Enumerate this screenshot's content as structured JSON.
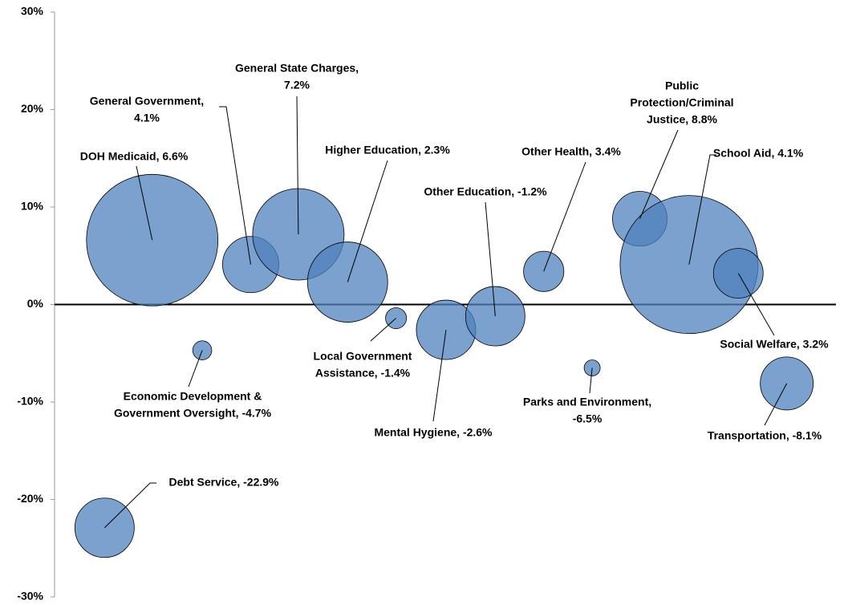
{
  "chart_data": {
    "type": "bubble",
    "x": [
      6.4,
      12.5,
      18.9,
      25.1,
      31.2,
      37.5,
      43.7,
      50.1,
      56.4,
      62.6,
      68.8,
      74.9,
      81.2,
      87.5,
      93.7
    ],
    "values": [
      -22.9,
      6.6,
      -4.7,
      4.1,
      7.2,
      2.3,
      -1.4,
      -2.6,
      -1.2,
      3.4,
      -6.5,
      8.8,
      4.1,
      3.2,
      -8.1
    ],
    "sizes": [
      13.7,
      67.2,
      1.4,
      12.3,
      32.5,
      25,
      1.7,
      13.7,
      13.7,
      6.3,
      1,
      11.6,
      74,
      9.6,
      10.9
    ],
    "value_labels": [
      [
        "Debt Service, -22.9%"
      ],
      [
        "DOH Medicaid, 6.6%"
      ],
      [
        "Economic Development &",
        "Government Oversight, -4.7%"
      ],
      [
        "General Government,",
        "4.1%"
      ],
      [
        "General State Charges,",
        "7.2%"
      ],
      [
        "Higher Education, 2.3%"
      ],
      [
        "Local Government",
        "Assistance, -1.4%"
      ],
      [
        "Mental Hygiene, -2.6%"
      ],
      [
        "Other Education, -1.2%"
      ],
      [
        "Other Health, 3.4%"
      ],
      [
        "Parks and Environment,",
        "-6.5%"
      ],
      [
        "Public",
        "Protection/Criminal",
        "Justice, 8.8%"
      ],
      [
        "School Aid, 4.1%"
      ],
      [
        "Social Welfare, 3.2%"
      ],
      [
        "Transportation, -8.1%"
      ]
    ],
    "color": "#4f81bd",
    "xlim": [
      0,
      100
    ],
    "ylim": [
      -30,
      30
    ],
    "yticks": [
      {
        "value": -30,
        "label": "-30%"
      },
      {
        "value": -20,
        "label": "-20%"
      },
      {
        "value": -10,
        "label": "-10%"
      },
      {
        "value": 0,
        "label": "0%"
      },
      {
        "value": 10,
        "label": "10%"
      },
      {
        "value": 20,
        "label": "20%"
      },
      {
        "value": 30,
        "label": "30%"
      }
    ]
  }
}
